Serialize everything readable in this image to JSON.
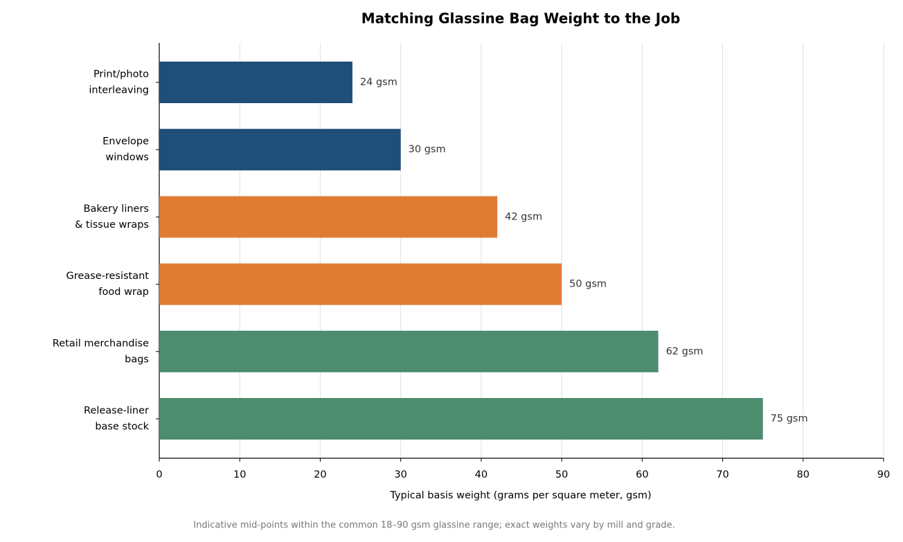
{
  "chart_data": {
    "type": "bar",
    "orientation": "horizontal",
    "title": "Matching Glassine Bag Weight to the Job",
    "categories": [
      [
        "Print/photo",
        "interleaving"
      ],
      [
        "Envelope",
        "windows"
      ],
      [
        "Bakery liners",
        "& tissue wraps"
      ],
      [
        "Grease-resistant",
        "food wrap"
      ],
      [
        "Retail merchandise",
        "bags"
      ],
      [
        "Release-liner",
        "base stock"
      ]
    ],
    "values": [
      24,
      30,
      42,
      50,
      62,
      75
    ],
    "value_labels": [
      "24 gsm",
      "30 gsm",
      "42 gsm",
      "50 gsm",
      "62 gsm",
      "75 gsm"
    ],
    "colors": [
      "#1f4e79",
      "#1f4e79",
      "#e07b33",
      "#e07b33",
      "#4d8c6e",
      "#4d8c6e"
    ],
    "xlabel": "Typical basis weight (grams per square meter, gsm)",
    "xlim": [
      0,
      90
    ],
    "xticks": [
      0,
      10,
      20,
      30,
      40,
      50,
      60,
      70,
      80,
      90
    ],
    "grid": true,
    "note": "Indicative mid-points within the common 18–90 gsm glassine range; exact weights vary by mill and grade."
  }
}
